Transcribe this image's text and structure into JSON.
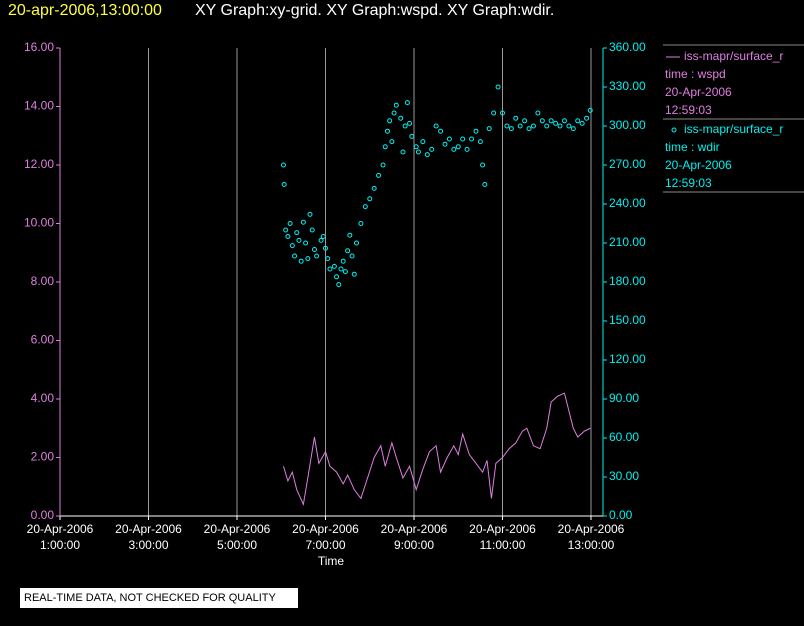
{
  "chart_data": {
    "type": "xy",
    "title": "20-apr-2006,13:00:00",
    "subtitle": "XY Graph:xy-grid.  XY Graph:wspd.  XY Graph:wdir.",
    "xlabel": "Time",
    "footnote": "REAL-TIME DATA, NOT CHECKED FOR QUALITY",
    "xlim": [
      "2006-04-20 01:00",
      "2006-04-20 13:00"
    ],
    "xticks": [
      {
        "value": "2006-04-20 01:00",
        "label": "20-Apr-2006 1:00:00"
      },
      {
        "value": "2006-04-20 03:00",
        "label": "20-Apr-2006 3:00:00"
      },
      {
        "value": "2006-04-20 05:00",
        "label": "20-Apr-2006 5:00:00"
      },
      {
        "value": "2006-04-20 07:00",
        "label": "20-Apr-2006 7:00:00"
      },
      {
        "value": "2006-04-20 09:00",
        "label": "20-Apr-2006 9:00:00"
      },
      {
        "value": "2006-04-20 11:00",
        "label": "20-Apr-2006 11:00:00"
      },
      {
        "value": "2006-04-20 13:00",
        "label": "20-Apr-2006 13:00:00"
      }
    ],
    "ylim": [
      0,
      16
    ],
    "yticks": [
      {
        "value": 0,
        "label": "0.00"
      },
      {
        "value": 2,
        "label": "2.00"
      },
      {
        "value": 4,
        "label": "4.00"
      },
      {
        "value": 6,
        "label": "6.00"
      },
      {
        "value": 8,
        "label": "8.00"
      },
      {
        "value": 10,
        "label": "10.00"
      },
      {
        "value": 12,
        "label": "12.00"
      },
      {
        "value": 14,
        "label": "14.00"
      },
      {
        "value": 16,
        "label": "16.00"
      }
    ],
    "y2lim": [
      0,
      360
    ],
    "y2ticks": [
      {
        "value": 0,
        "label": "0.00"
      },
      {
        "value": 30,
        "label": "30.00"
      },
      {
        "value": 60,
        "label": "60.00"
      },
      {
        "value": 90,
        "label": "90.00"
      },
      {
        "value": 120,
        "label": "120.00"
      },
      {
        "value": 150,
        "label": "150.00"
      },
      {
        "value": 180,
        "label": "180.00"
      },
      {
        "value": 210,
        "label": "210.00"
      },
      {
        "value": 240,
        "label": "240.00"
      },
      {
        "value": 270,
        "label": "270.00"
      },
      {
        "value": 300,
        "label": "300.00"
      },
      {
        "value": 330,
        "label": "330.00"
      },
      {
        "value": 360,
        "label": "360.00"
      }
    ],
    "grid": true,
    "series": [
      {
        "name": "iss-mapr/surface_r",
        "field": "time : wspd",
        "date": "20-Apr-2006",
        "time": "12:59:03",
        "mark": "line",
        "color": "#e07ee0",
        "axis": "y",
        "x": [
          "2006-04-20 06:03",
          "2006-04-20 06:09",
          "2006-04-20 06:15",
          "2006-04-20 06:21",
          "2006-04-20 06:30",
          "2006-04-20 06:36",
          "2006-04-20 06:45",
          "2006-04-20 06:51",
          "2006-04-20 07:00",
          "2006-04-20 07:06",
          "2006-04-20 07:15",
          "2006-04-20 07:24",
          "2006-04-20 07:30",
          "2006-04-20 07:39",
          "2006-04-20 07:48",
          "2006-04-20 07:57",
          "2006-04-20 08:06",
          "2006-04-20 08:15",
          "2006-04-20 08:21",
          "2006-04-20 08:30",
          "2006-04-20 08:36",
          "2006-04-20 08:45",
          "2006-04-20 08:54",
          "2006-04-20 09:03",
          "2006-04-20 09:12",
          "2006-04-20 09:21",
          "2006-04-20 09:30",
          "2006-04-20 09:36",
          "2006-04-20 09:45",
          "2006-04-20 09:54",
          "2006-04-20 10:00",
          "2006-04-20 10:06",
          "2006-04-20 10:15",
          "2006-04-20 10:24",
          "2006-04-20 10:33",
          "2006-04-20 10:39",
          "2006-04-20 10:45",
          "2006-04-20 10:51",
          "2006-04-20 11:00",
          "2006-04-20 11:09",
          "2006-04-20 11:18",
          "2006-04-20 11:27",
          "2006-04-20 11:33",
          "2006-04-20 11:42",
          "2006-04-20 11:51",
          "2006-04-20 12:00",
          "2006-04-20 12:06",
          "2006-04-20 12:15",
          "2006-04-20 12:24",
          "2006-04-20 12:30",
          "2006-04-20 12:36",
          "2006-04-20 12:42",
          "2006-04-20 12:51",
          "2006-04-20 12:59"
        ],
        "values": [
          1.7,
          1.2,
          1.5,
          0.9,
          0.4,
          1.3,
          2.7,
          1.8,
          2.2,
          1.7,
          1.5,
          1.1,
          1.4,
          0.9,
          0.6,
          1.3,
          2.0,
          2.4,
          1.7,
          2.5,
          2.0,
          1.3,
          1.7,
          0.9,
          1.6,
          2.2,
          2.4,
          1.5,
          2.0,
          2.4,
          2.1,
          2.8,
          2.1,
          1.8,
          1.5,
          1.9,
          0.6,
          1.8,
          2.0,
          2.3,
          2.5,
          2.9,
          3.0,
          2.4,
          2.3,
          3.0,
          3.9,
          4.1,
          4.2,
          3.6,
          3.0,
          2.7,
          2.9,
          3.0
        ]
      },
      {
        "name": "iss-mapr/surface_r",
        "field": "time : wdir",
        "date": "20-Apr-2006",
        "time": "12:59:03",
        "mark": "scatter",
        "color": "#00f0f0",
        "axis": "y2",
        "x": [
          "2006-04-20 06:03",
          "2006-04-20 06:04",
          "2006-04-20 06:06",
          "2006-04-20 06:09",
          "2006-04-20 06:12",
          "2006-04-20 06:15",
          "2006-04-20 06:18",
          "2006-04-20 06:21",
          "2006-04-20 06:24",
          "2006-04-20 06:27",
          "2006-04-20 06:30",
          "2006-04-20 06:33",
          "2006-04-20 06:36",
          "2006-04-20 06:39",
          "2006-04-20 06:42",
          "2006-04-20 06:45",
          "2006-04-20 06:48",
          "2006-04-20 06:54",
          "2006-04-20 06:57",
          "2006-04-20 07:00",
          "2006-04-20 07:03",
          "2006-04-20 07:06",
          "2006-04-20 07:12",
          "2006-04-20 07:15",
          "2006-04-20 07:18",
          "2006-04-20 07:21",
          "2006-04-20 07:24",
          "2006-04-20 07:27",
          "2006-04-20 07:30",
          "2006-04-20 07:33",
          "2006-04-20 07:36",
          "2006-04-20 07:39",
          "2006-04-20 07:42",
          "2006-04-20 07:48",
          "2006-04-20 07:54",
          "2006-04-20 08:00",
          "2006-04-20 08:06",
          "2006-04-20 08:12",
          "2006-04-20 08:18",
          "2006-04-20 08:21",
          "2006-04-20 08:24",
          "2006-04-20 08:27",
          "2006-04-20 08:30",
          "2006-04-20 08:33",
          "2006-04-20 08:36",
          "2006-04-20 08:42",
          "2006-04-20 08:45",
          "2006-04-20 08:48",
          "2006-04-20 08:51",
          "2006-04-20 08:54",
          "2006-04-20 08:57",
          "2006-04-20 09:03",
          "2006-04-20 09:06",
          "2006-04-20 09:12",
          "2006-04-20 09:18",
          "2006-04-20 09:24",
          "2006-04-20 09:30",
          "2006-04-20 09:36",
          "2006-04-20 09:42",
          "2006-04-20 09:48",
          "2006-04-20 09:54",
          "2006-04-20 10:00",
          "2006-04-20 10:06",
          "2006-04-20 10:12",
          "2006-04-20 10:18",
          "2006-04-20 10:24",
          "2006-04-20 10:30",
          "2006-04-20 10:33",
          "2006-04-20 10:36",
          "2006-04-20 10:42",
          "2006-04-20 10:48",
          "2006-04-20 10:54",
          "2006-04-20 11:00",
          "2006-04-20 11:06",
          "2006-04-20 11:12",
          "2006-04-20 11:18",
          "2006-04-20 11:24",
          "2006-04-20 11:30",
          "2006-04-20 11:36",
          "2006-04-20 11:42",
          "2006-04-20 11:48",
          "2006-04-20 11:54",
          "2006-04-20 12:00",
          "2006-04-20 12:06",
          "2006-04-20 12:12",
          "2006-04-20 12:18",
          "2006-04-20 12:24",
          "2006-04-20 12:30",
          "2006-04-20 12:36",
          "2006-04-20 12:42",
          "2006-04-20 12:48",
          "2006-04-20 12:54",
          "2006-04-20 12:59"
        ],
        "values": [
          270,
          255,
          220,
          215,
          225,
          208,
          200,
          218,
          212,
          196,
          226,
          210,
          198,
          232,
          220,
          205,
          200,
          212,
          215,
          206,
          198,
          190,
          192,
          184,
          178,
          190,
          196,
          188,
          204,
          216,
          200,
          186,
          210,
          225,
          238,
          244,
          252,
          262,
          270,
          284,
          296,
          304,
          288,
          310,
          316,
          306,
          280,
          300,
          318,
          302,
          292,
          284,
          280,
          288,
          278,
          282,
          300,
          296,
          286,
          290,
          282,
          284,
          290,
          282,
          290,
          296,
          288,
          270,
          255,
          298,
          310,
          330,
          310,
          300,
          298,
          306,
          300,
          304,
          298,
          300,
          310,
          304,
          300,
          304,
          302,
          300,
          304,
          300,
          298,
          304,
          302,
          306,
          312
        ]
      }
    ]
  }
}
